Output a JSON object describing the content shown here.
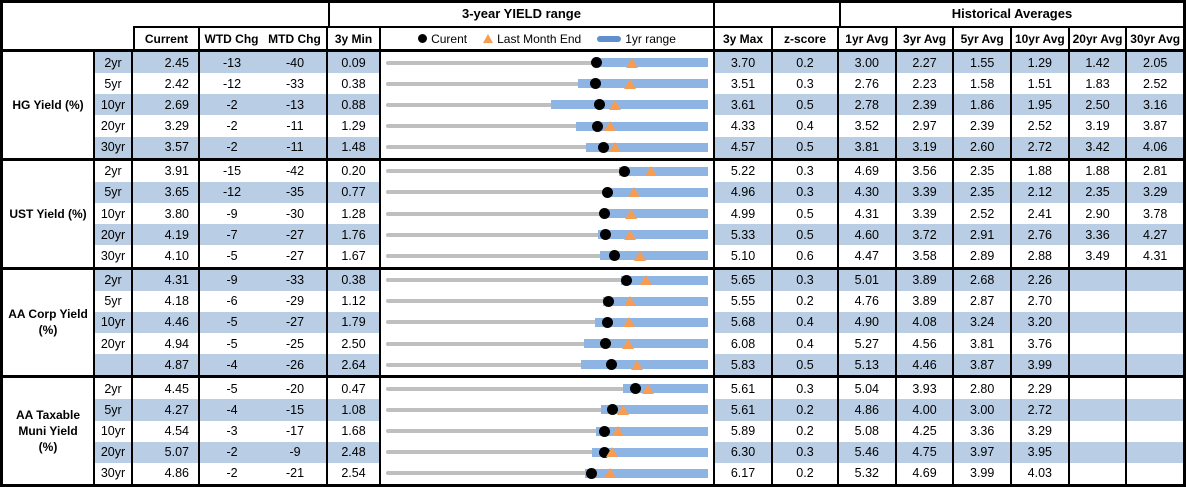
{
  "header": {
    "range_title": "3-year YIELD range",
    "hist_title": "Historical Averages",
    "col_current": "Current",
    "col_wtd": "WTD Chg",
    "col_mtd": "MTD Chg",
    "col_3y_min": "3y Min",
    "col_3y_max": "3y Max",
    "col_zscore": "z-score",
    "avg_cols": [
      "1yr Avg",
      "3yr Avg",
      "5yr Avg",
      "10yr Avg",
      "20yr Avg",
      "30yr Avg"
    ],
    "legend": {
      "current_label": "Curent",
      "last_month_end_label": "Last Month End",
      "range_label": "1yr range"
    }
  },
  "colors": {
    "stripe_blue": "#B9CDE4",
    "bar_blue": "#8DB4E2",
    "legend_bar_blue": "#5F8FCC",
    "track_gray": "#BFBFBF",
    "marker_orange": "#F79D53",
    "dot_black": "#000000"
  },
  "chart_data": {
    "type": "table",
    "title": "3-year YIELD range",
    "row_chart_type": "range-dot",
    "legend": [
      "Curent (dot)",
      "Last Month End (triangle)",
      "1yr range (bar)"
    ],
    "groups": [
      {
        "label": "HG Yield (%)",
        "rows": [
          {
            "tenor": "2yr",
            "current": "2.45",
            "wtd": "-13",
            "mtd": "-40",
            "min": "0.09",
            "max": "3.70",
            "z": "0.2",
            "avgs": [
              "3.00",
              "2.27",
              "1.55",
              "1.29",
              "1.42",
              "2.05"
            ],
            "chart": {
              "min": 0.09,
              "max": 3.7,
              "bar_low": 2.45,
              "bar_high": 3.7,
              "dot": 2.45,
              "tri": 2.85
            }
          },
          {
            "tenor": "5yr",
            "current": "2.42",
            "wtd": "-12",
            "mtd": "-33",
            "min": "0.38",
            "max": "3.51",
            "z": "0.3",
            "avgs": [
              "2.76",
              "2.23",
              "1.58",
              "1.51",
              "1.83",
              "2.52"
            ],
            "chart": {
              "min": 0.38,
              "max": 3.51,
              "bar_low": 2.25,
              "bar_high": 3.51,
              "dot": 2.42,
              "tri": 2.75
            }
          },
          {
            "tenor": "10yr",
            "current": "2.69",
            "wtd": "-2",
            "mtd": "-13",
            "min": "0.88",
            "max": "3.61",
            "z": "0.5",
            "avgs": [
              "2.78",
              "2.39",
              "1.86",
              "1.95",
              "2.50",
              "3.16"
            ],
            "chart": {
              "min": 0.88,
              "max": 3.61,
              "bar_low": 2.28,
              "bar_high": 3.61,
              "dot": 2.69,
              "tri": 2.82
            }
          },
          {
            "tenor": "20yr",
            "current": "3.29",
            "wtd": "-2",
            "mtd": "-11",
            "min": "1.29",
            "max": "4.33",
            "z": "0.4",
            "avgs": [
              "3.52",
              "2.97",
              "2.39",
              "2.52",
              "3.19",
              "3.87"
            ],
            "chart": {
              "min": 1.29,
              "max": 4.33,
              "bar_low": 3.08,
              "bar_high": 4.33,
              "dot": 3.29,
              "tri": 3.4
            }
          },
          {
            "tenor": "30yr",
            "current": "3.57",
            "wtd": "-2",
            "mtd": "-11",
            "min": "1.48",
            "max": "4.57",
            "z": "0.5",
            "avgs": [
              "3.81",
              "3.19",
              "2.60",
              "2.72",
              "3.42",
              "4.06"
            ],
            "chart": {
              "min": 1.48,
              "max": 4.57,
              "bar_low": 3.4,
              "bar_high": 4.57,
              "dot": 3.57,
              "tri": 3.68
            }
          }
        ]
      },
      {
        "label": "UST Yield (%)",
        "rows": [
          {
            "tenor": "2yr",
            "current": "3.91",
            "wtd": "-15",
            "mtd": "-42",
            "min": "0.20",
            "max": "5.22",
            "z": "0.3",
            "avgs": [
              "4.69",
              "3.56",
              "2.35",
              "1.88",
              "1.88",
              "2.81"
            ],
            "chart": {
              "min": 0.2,
              "max": 5.22,
              "bar_low": 3.83,
              "bar_high": 5.22,
              "dot": 3.91,
              "tri": 4.33
            }
          },
          {
            "tenor": "5yr",
            "current": "3.65",
            "wtd": "-12",
            "mtd": "-35",
            "min": "0.77",
            "max": "4.96",
            "z": "0.3",
            "avgs": [
              "4.30",
              "3.39",
              "2.35",
              "2.12",
              "2.35",
              "3.29"
            ],
            "chart": {
              "min": 0.77,
              "max": 4.96,
              "bar_low": 3.62,
              "bar_high": 4.96,
              "dot": 3.65,
              "tri": 4.0
            }
          },
          {
            "tenor": "10yr",
            "current": "3.80",
            "wtd": "-9",
            "mtd": "-30",
            "min": "1.28",
            "max": "4.99",
            "z": "0.5",
            "avgs": [
              "4.31",
              "3.39",
              "2.52",
              "2.41",
              "2.90",
              "3.78"
            ],
            "chart": {
              "min": 1.28,
              "max": 4.99,
              "bar_low": 3.76,
              "bar_high": 4.99,
              "dot": 3.8,
              "tri": 4.1
            }
          },
          {
            "tenor": "20yr",
            "current": "4.19",
            "wtd": "-7",
            "mtd": "-27",
            "min": "1.76",
            "max": "5.33",
            "z": "0.5",
            "avgs": [
              "4.60",
              "3.72",
              "2.91",
              "2.76",
              "3.36",
              "4.27"
            ],
            "chart": {
              "min": 1.76,
              "max": 5.33,
              "bar_low": 4.11,
              "bar_high": 5.33,
              "dot": 4.19,
              "tri": 4.46
            }
          },
          {
            "tenor": "30yr",
            "current": "4.10",
            "wtd": "-5",
            "mtd": "-27",
            "min": "1.67",
            "max": "5.10",
            "z": "0.6",
            "avgs": [
              "4.47",
              "3.58",
              "2.89",
              "2.88",
              "3.49",
              "4.31"
            ],
            "chart": {
              "min": 1.67,
              "max": 5.1,
              "bar_low": 3.95,
              "bar_high": 5.1,
              "dot": 4.1,
              "tri": 4.37
            }
          }
        ]
      },
      {
        "label": "AA Corp Yield\n(%)",
        "rows": [
          {
            "tenor": "2yr",
            "current": "4.31",
            "wtd": "-9",
            "mtd": "-33",
            "min": "0.38",
            "max": "5.65",
            "z": "0.3",
            "avgs": [
              "5.01",
              "3.89",
              "2.68",
              "2.26",
              "",
              ""
            ],
            "chart": {
              "min": 0.38,
              "max": 5.65,
              "bar_low": 4.23,
              "bar_high": 5.65,
              "dot": 4.31,
              "tri": 4.64
            }
          },
          {
            "tenor": "5yr",
            "current": "4.18",
            "wtd": "-6",
            "mtd": "-29",
            "min": "1.12",
            "max": "5.55",
            "z": "0.2",
            "avgs": [
              "4.76",
              "3.89",
              "2.87",
              "2.70",
              "",
              ""
            ],
            "chart": {
              "min": 1.12,
              "max": 5.55,
              "bar_low": 4.11,
              "bar_high": 5.55,
              "dot": 4.18,
              "tri": 4.47
            }
          },
          {
            "tenor": "10yr",
            "current": "4.46",
            "wtd": "-5",
            "mtd": "-27",
            "min": "1.79",
            "max": "5.68",
            "z": "0.4",
            "avgs": [
              "4.90",
              "4.08",
              "3.24",
              "3.20",
              "",
              ""
            ],
            "chart": {
              "min": 1.79,
              "max": 5.68,
              "bar_low": 4.31,
              "bar_high": 5.68,
              "dot": 4.46,
              "tri": 4.73
            }
          },
          {
            "tenor": "20yr",
            "current": "4.94",
            "wtd": "-5",
            "mtd": "-25",
            "min": "2.50",
            "max": "6.08",
            "z": "0.4",
            "avgs": [
              "5.27",
              "4.56",
              "3.81",
              "3.76",
              "",
              ""
            ],
            "chart": {
              "min": 2.5,
              "max": 6.08,
              "bar_low": 4.7,
              "bar_high": 6.08,
              "dot": 4.94,
              "tri": 5.19
            }
          },
          {
            "tenor": "",
            "current": "4.87",
            "wtd": "-4",
            "mtd": "-26",
            "min": "2.64",
            "max": "5.83",
            "z": "0.5",
            "avgs": [
              "5.13",
              "4.46",
              "3.87",
              "3.99",
              "",
              ""
            ],
            "chart": {
              "min": 2.64,
              "max": 5.83,
              "bar_low": 4.57,
              "bar_high": 5.83,
              "dot": 4.87,
              "tri": 5.13
            }
          }
        ]
      },
      {
        "label": "AA Taxable\nMuni Yield\n(%)",
        "rows": [
          {
            "tenor": "2yr",
            "current": "4.45",
            "wtd": "-5",
            "mtd": "-20",
            "min": "0.47",
            "max": "5.61",
            "z": "0.3",
            "avgs": [
              "5.04",
              "3.93",
              "2.80",
              "2.29",
              "",
              ""
            ],
            "chart": {
              "min": 0.47,
              "max": 5.61,
              "bar_low": 4.26,
              "bar_high": 5.61,
              "dot": 4.45,
              "tri": 4.65
            }
          },
          {
            "tenor": "5yr",
            "current": "4.27",
            "wtd": "-4",
            "mtd": "-15",
            "min": "1.08",
            "max": "5.61",
            "z": "0.2",
            "avgs": [
              "4.86",
              "4.00",
              "3.00",
              "2.72",
              "",
              ""
            ],
            "chart": {
              "min": 1.08,
              "max": 5.61,
              "bar_low": 4.11,
              "bar_high": 5.61,
              "dot": 4.27,
              "tri": 4.42
            }
          },
          {
            "tenor": "10yr",
            "current": "4.54",
            "wtd": "-3",
            "mtd": "-17",
            "min": "1.68",
            "max": "5.89",
            "z": "0.2",
            "avgs": [
              "5.08",
              "4.25",
              "3.36",
              "3.29",
              "",
              ""
            ],
            "chart": {
              "min": 1.68,
              "max": 5.89,
              "bar_low": 4.42,
              "bar_high": 5.89,
              "dot": 4.54,
              "tri": 4.71
            }
          },
          {
            "tenor": "20yr",
            "current": "5.07",
            "wtd": "-2",
            "mtd": "-9",
            "min": "2.48",
            "max": "6.30",
            "z": "0.3",
            "avgs": [
              "5.46",
              "4.75",
              "3.97",
              "3.95",
              "",
              ""
            ],
            "chart": {
              "min": 2.48,
              "max": 6.3,
              "bar_low": 4.92,
              "bar_high": 6.3,
              "dot": 5.07,
              "tri": 5.16
            }
          },
          {
            "tenor": "30yr",
            "current": "4.86",
            "wtd": "-2",
            "mtd": "-21",
            "min": "2.54",
            "max": "6.17",
            "z": "0.2",
            "avgs": [
              "5.32",
              "4.69",
              "3.99",
              "4.03",
              "",
              ""
            ],
            "chart": {
              "min": 2.54,
              "max": 6.17,
              "bar_low": 4.78,
              "bar_high": 6.17,
              "dot": 4.86,
              "tri": 5.07
            }
          }
        ]
      }
    ]
  }
}
